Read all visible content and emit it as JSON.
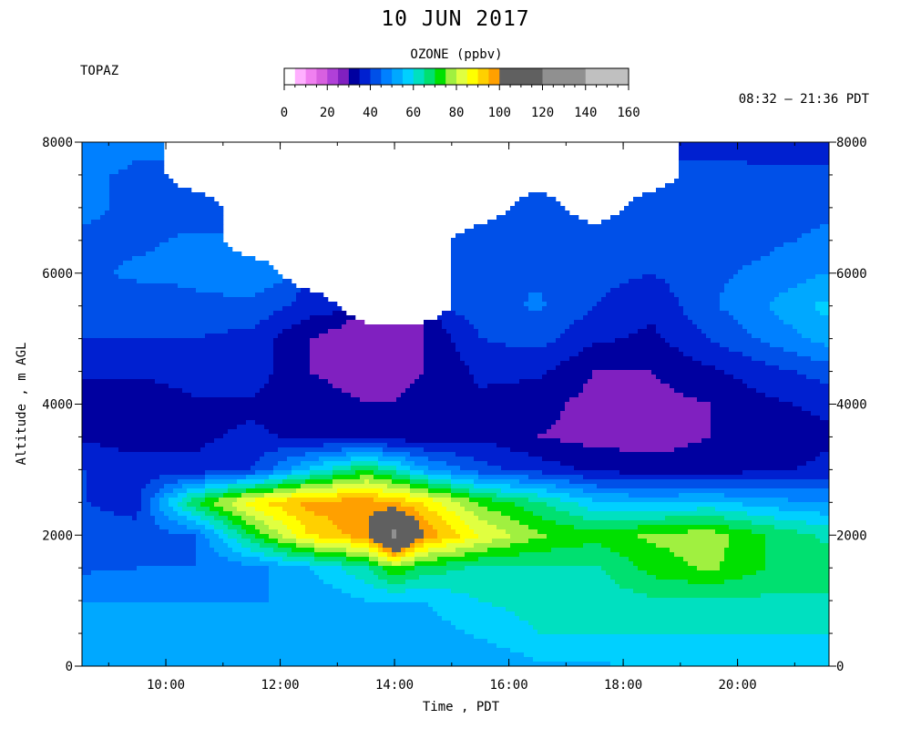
{
  "header": {
    "date": "10 JUN 2017",
    "site": "TOPAZ",
    "time_range": "08:32 – 21:36 PDT"
  },
  "colorbar": {
    "label": "OZONE (ppbv)",
    "ticks": [
      "0",
      "20",
      "40",
      "60",
      "80",
      "100",
      "120",
      "140",
      "160"
    ],
    "colors": [
      "#ffffff",
      "#ffb0ff",
      "#f080f0",
      "#d860e0",
      "#b040d8",
      "#8020c0",
      "#0000a0",
      "#0020d0",
      "#0050e8",
      "#0080ff",
      "#00a8ff",
      "#00d0ff",
      "#00e0c0",
      "#00e070",
      "#00e000",
      "#a0f040",
      "#e0ff40",
      "#ffff00",
      "#ffd000",
      "#ffa000",
      "#ff7000",
      "#ff3000",
      "#e00000",
      "#a00020"
    ],
    "high_colors": [
      "#606060",
      "#909090",
      "#c0c0c0"
    ]
  },
  "chart_data": {
    "type": "heatmap",
    "title": "10 JUN 2017",
    "variable": "OZONE (ppbv)",
    "xlabel": "Time , PDT",
    "ylabel": "Altitude , m AGL",
    "xlim": [
      "08:32",
      "21:36"
    ],
    "ylim": [
      0,
      8000
    ],
    "x_ticks": [
      "10:00",
      "12:00",
      "14:00",
      "16:00",
      "18:00",
      "20:00"
    ],
    "y_ticks": [
      0,
      2000,
      4000,
      6000,
      8000
    ],
    "time_hours": [
      8.6,
      9.5,
      10.5,
      11.5,
      12.5,
      13.5,
      14.0,
      14.5,
      15.5,
      16.5,
      17.5,
      18.5,
      19.5,
      20.5,
      21.5
    ],
    "altitude_m": [
      0,
      500,
      1000,
      1500,
      2000,
      2500,
      3000,
      3500,
      4000,
      4500,
      5000,
      5500,
      6000,
      6500,
      7000,
      7500,
      8000
    ],
    "ozone_ppbv": [
      [
        50,
        50,
        50,
        50,
        50,
        50,
        50,
        50,
        50,
        54,
        54,
        56,
        56,
        56,
        56
      ],
      [
        52,
        52,
        52,
        52,
        52,
        52,
        52,
        52,
        56,
        60,
        60,
        60,
        60,
        60,
        60
      ],
      [
        50,
        50,
        50,
        50,
        50,
        55,
        55,
        55,
        60,
        62,
        62,
        64,
        64,
        64,
        64
      ],
      [
        44,
        45,
        45,
        48,
        55,
        64,
        75,
        68,
        64,
        64,
        64,
        72,
        76,
        70,
        68
      ],
      [
        42,
        42,
        45,
        70,
        90,
        98,
        125,
        100,
        85,
        76,
        72,
        76,
        78,
        70,
        64
      ],
      [
        40,
        38,
        70,
        88,
        97,
        98,
        95,
        90,
        74,
        66,
        56,
        54,
        56,
        52,
        50
      ],
      [
        40,
        38,
        36,
        40,
        56,
        70,
        62,
        52,
        42,
        38,
        34,
        32,
        32,
        34,
        36
      ],
      [
        34,
        32,
        34,
        36,
        34,
        32,
        32,
        32,
        34,
        30,
        28,
        28,
        30,
        32,
        34
      ],
      [
        30,
        30,
        34,
        34,
        32,
        30,
        30,
        32,
        34,
        32,
        28,
        28,
        30,
        34,
        36
      ],
      [
        36,
        36,
        38,
        38,
        30,
        28,
        28,
        30,
        36,
        36,
        30,
        30,
        34,
        38,
        42
      ],
      [
        40,
        40,
        40,
        38,
        30,
        26,
        28,
        30,
        40,
        42,
        36,
        34,
        40,
        46,
        52
      ],
      [
        42,
        42,
        44,
        44,
        38,
        null,
        null,
        null,
        42,
        46,
        40,
        36,
        44,
        50,
        56
      ],
      [
        44,
        46,
        46,
        48,
        null,
        null,
        null,
        null,
        44,
        44,
        42,
        40,
        44,
        46,
        50
      ],
      [
        44,
        44,
        46,
        null,
        null,
        null,
        null,
        null,
        44,
        44,
        42,
        44,
        44,
        44,
        46
      ],
      [
        46,
        44,
        42,
        null,
        null,
        null,
        null,
        null,
        null,
        42,
        null,
        42,
        42,
        42,
        44
      ],
      [
        46,
        44,
        null,
        null,
        null,
        null,
        null,
        null,
        null,
        null,
        null,
        null,
        42,
        42,
        42
      ],
      [
        50,
        46,
        null,
        null,
        null,
        null,
        null,
        null,
        null,
        null,
        null,
        null,
        38,
        36,
        36
      ]
    ]
  }
}
